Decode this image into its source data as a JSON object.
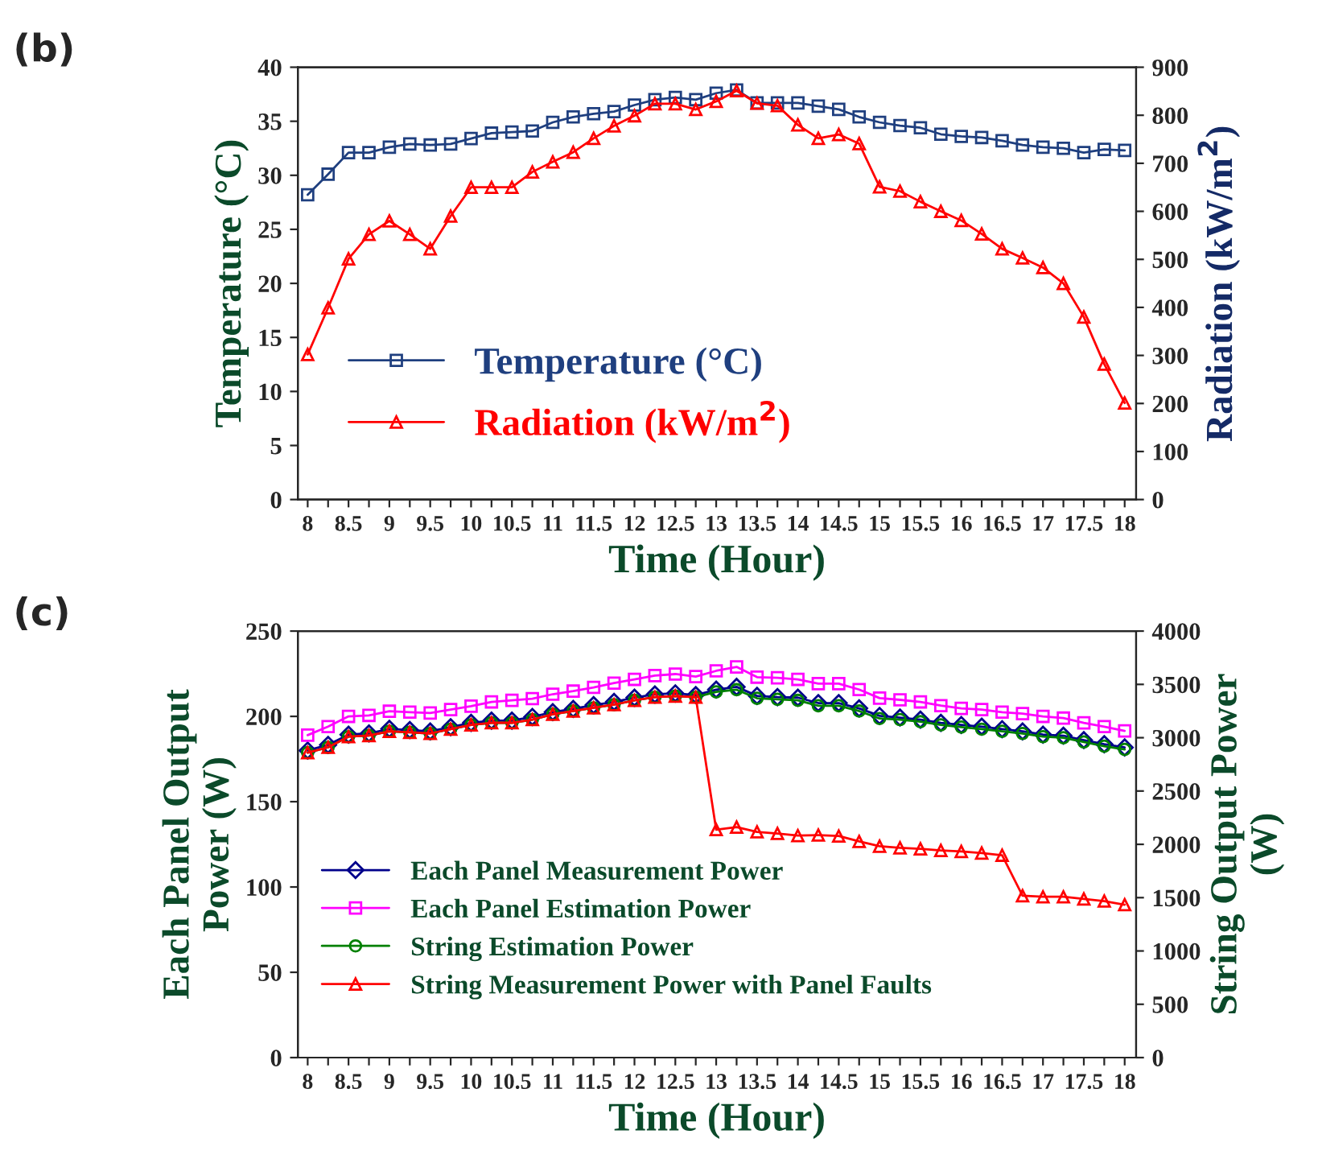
{
  "chart_data": [
    {
      "type": "line",
      "title": "(b)",
      "xlabel": "Time (Hour)",
      "ylabel": "Temperature (°C)",
      "y2label": "Radiation (kW/m$^{2}$)",
      "x": [
        8,
        8.25,
        8.5,
        8.75,
        9,
        9.25,
        9.5,
        9.75,
        10,
        10.25,
        10.5,
        10.75,
        11,
        11.25,
        11.5,
        11.75,
        12,
        12.25,
        12.5,
        12.75,
        13,
        13.25,
        13.5,
        13.75,
        14,
        14.25,
        14.5,
        14.75,
        15,
        15.25,
        15.5,
        15.75,
        16,
        16.25,
        16.5,
        16.75,
        17,
        17.25,
        17.5,
        17.75,
        18
      ],
      "xlim": [
        7.88,
        18.14
      ],
      "xticks": [
        8,
        {
          "value": 8.25,
          "label": null
        },
        8.5,
        {
          "value": 8.75,
          "label": null
        },
        9,
        {
          "value": 9.25,
          "label": null
        },
        9.5,
        {
          "value": 9.75,
          "label": null
        },
        10,
        {
          "value": 10.25,
          "label": null
        },
        10.5,
        {
          "value": 10.75,
          "label": null
        },
        11,
        {
          "value": 11.25,
          "label": null
        },
        11.5,
        {
          "value": 11.75,
          "label": null
        },
        12,
        {
          "value": 12.25,
          "label": null
        },
        12.5,
        {
          "value": 12.75,
          "label": null
        },
        13,
        {
          "value": 13.25,
          "label": null
        },
        13.5,
        {
          "value": 13.75,
          "label": null
        },
        14,
        {
          "value": 14.25,
          "label": null
        },
        14.5,
        {
          "value": 14.75,
          "label": null
        },
        15,
        {
          "value": 15.25,
          "label": null
        },
        15.5,
        {
          "value": 15.75,
          "label": null
        },
        16,
        {
          "value": 16.25,
          "label": null
        },
        16.5,
        {
          "value": 16.75,
          "label": null
        },
        17,
        {
          "value": 17.25,
          "label": null
        },
        17.5,
        {
          "value": 17.75,
          "label": null
        },
        18
      ],
      "ylim": [
        0,
        40
      ],
      "yticks": [
        0,
        5,
        10,
        15,
        20,
        25,
        30,
        35,
        40
      ],
      "y2lim": [
        0,
        900
      ],
      "y2ticks": [
        0,
        100,
        200,
        300,
        400,
        500,
        600,
        700,
        800,
        900
      ],
      "grid": false,
      "legend": "bottom left",
      "series": [
        {
          "name": "Temperature (°C)",
          "color": "#1f3f7f",
          "marker": "square",
          "values": [
            28.2,
            30.1,
            32.1,
            32.1,
            32.6,
            32.9,
            32.8,
            32.9,
            33.4,
            33.9,
            34.0,
            34.1,
            34.9,
            35.4,
            35.7,
            35.9,
            36.5,
            37.0,
            37.2,
            37.0,
            37.6,
            37.9,
            36.7,
            36.7,
            36.7,
            36.4,
            36.1,
            35.4,
            34.9,
            34.6,
            34.4,
            33.8,
            33.6,
            33.5,
            33.2,
            32.8,
            32.6,
            32.5,
            32.1,
            32.4,
            32.3
          ]
        },
        {
          "name": "Radiation (kW/m$^{2}$)",
          "color": "#ff0000",
          "marker": "triangle",
          "axis": "y2",
          "values": [
            302,
            399,
            501,
            552,
            580,
            552,
            522,
            590,
            650,
            650,
            650,
            682,
            703,
            723,
            752,
            778,
            799,
            824,
            824,
            812,
            829,
            851,
            825,
            820,
            780,
            752,
            760,
            741,
            651,
            642,
            620,
            600,
            581,
            553,
            522,
            503,
            483,
            450,
            380,
            282,
            201
          ]
        }
      ]
    },
    {
      "type": "line",
      "title": "(c)",
      "xlabel": "Time (Hour)",
      "ylabel": "Each Panel Output Power (W)",
      "y2label": "String Output Power (W)",
      "x": [
        8,
        8.25,
        8.5,
        8.75,
        9,
        9.25,
        9.5,
        9.75,
        10,
        10.25,
        10.5,
        10.75,
        11,
        11.25,
        11.5,
        11.75,
        12,
        12.25,
        12.5,
        12.75,
        13,
        13.25,
        13.5,
        13.75,
        14,
        14.25,
        14.5,
        14.75,
        15,
        15.25,
        15.5,
        15.75,
        16,
        16.25,
        16.5,
        16.75,
        17,
        17.25,
        17.5,
        17.75,
        18
      ],
      "xlim": [
        7.88,
        18.14
      ],
      "xticks": [
        8,
        {
          "value": 8.25,
          "label": null
        },
        8.5,
        {
          "value": 8.75,
          "label": null
        },
        9,
        {
          "value": 9.25,
          "label": null
        },
        9.5,
        {
          "value": 9.75,
          "label": null
        },
        10,
        {
          "value": 10.25,
          "label": null
        },
        10.5,
        {
          "value": 10.75,
          "label": null
        },
        11,
        {
          "value": 11.25,
          "label": null
        },
        11.5,
        {
          "value": 11.75,
          "label": null
        },
        12,
        {
          "value": 12.25,
          "label": null
        },
        12.5,
        {
          "value": 12.75,
          "label": null
        },
        13,
        {
          "value": 13.25,
          "label": null
        },
        13.5,
        {
          "value": 13.75,
          "label": null
        },
        14,
        {
          "value": 14.25,
          "label": null
        },
        14.5,
        {
          "value": 14.75,
          "label": null
        },
        15,
        {
          "value": 15.25,
          "label": null
        },
        15.5,
        {
          "value": 15.75,
          "label": null
        },
        16,
        {
          "value": 16.25,
          "label": null
        },
        16.5,
        {
          "value": 16.75,
          "label": null
        },
        17,
        {
          "value": 17.25,
          "label": null
        },
        17.5,
        {
          "value": 17.75,
          "label": null
        },
        18
      ],
      "ylim": [
        0,
        250
      ],
      "yticks": [
        0,
        50,
        100,
        150,
        200,
        250
      ],
      "y2lim": [
        0,
        4000
      ],
      "y2ticks": [
        0,
        500,
        1000,
        1500,
        2000,
        2500,
        3000,
        3500,
        4000
      ],
      "grid": false,
      "legend": "bottom left",
      "series": [
        {
          "name": "Each Panel Measurement Power",
          "color": "#00008b",
          "marker": "diamond",
          "values": [
            180.0,
            183.3,
            189.3,
            190.0,
            192.7,
            192.0,
            191.2,
            193.7,
            196.2,
            197.5,
            197.5,
            199.7,
            202.5,
            204.4,
            206.6,
            208.5,
            211.0,
            212.9,
            213.5,
            212.5,
            215.7,
            217.3,
            212.0,
            211.3,
            211.0,
            207.8,
            207.8,
            204.7,
            200.3,
            199.3,
            198.1,
            196.2,
            195.0,
            194.0,
            192.5,
            191.2,
            189.3,
            188.7,
            186.1,
            183.7,
            181.8
          ]
        },
        {
          "name": "Each Panel Estimation Power",
          "color": "#ff00ff",
          "marker": "square",
          "values": [
            189,
            194,
            200,
            200.6,
            203,
            202.5,
            202,
            204,
            206,
            208.5,
            209.4,
            210.4,
            213,
            214.8,
            217,
            219.5,
            221.7,
            223.9,
            224.8,
            223.3,
            226.7,
            229,
            223,
            222.6,
            221.7,
            219.2,
            219.2,
            215.7,
            210.7,
            209.7,
            208.5,
            206.3,
            204.7,
            204,
            202.5,
            201.6,
            200,
            199,
            196.2,
            194,
            191.5
          ]
        },
        {
          "name": "String Estimation Power",
          "color": "#008000",
          "marker": "circle",
          "axis": "y2",
          "values": [
            2860,
            2910,
            3010,
            3020,
            3060,
            3050,
            3040,
            3080,
            3120,
            3140,
            3140,
            3170,
            3220,
            3250,
            3280,
            3310,
            3350,
            3380,
            3390,
            3380,
            3430,
            3450,
            3370,
            3360,
            3350,
            3300,
            3300,
            3250,
            3180,
            3170,
            3150,
            3120,
            3100,
            3080,
            3060,
            3040,
            3010,
            3000,
            2960,
            2920,
            2890
          ]
        },
        {
          "name": "String Measurement Power with Panel Faults",
          "color": "#ff0000",
          "marker": "triangle",
          "axis": "y2",
          "values": [
            2860,
            2910,
            3010,
            3020,
            3060,
            3050,
            3040,
            3080,
            3120,
            3140,
            3140,
            3170,
            3220,
            3250,
            3280,
            3310,
            3350,
            3380,
            3390,
            3380,
            2138,
            2162,
            2117,
            2102,
            2082,
            2087,
            2078,
            2027,
            1982,
            1967,
            1958,
            1943,
            1933,
            1918,
            1898,
            1518,
            1508,
            1508,
            1488,
            1468,
            1434
          ]
        }
      ]
    }
  ]
}
